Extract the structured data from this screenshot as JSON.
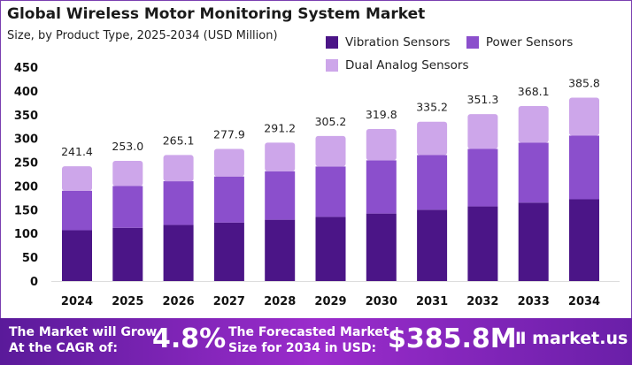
{
  "chart_data": {
    "type": "bar",
    "stacked": true,
    "title": "Global Wireless Motor Monitoring System Market",
    "subtitle": "Size, by Product Type, 2025-2034 (USD Million)",
    "categories": [
      "2024",
      "2025",
      "2026",
      "2027",
      "2028",
      "2029",
      "2030",
      "2031",
      "2032",
      "2033",
      "2034"
    ],
    "series": [
      {
        "name": "Vibration Sensors",
        "color": "#4b1587",
        "values": [
          107,
          112,
          118,
          123,
          129,
          135,
          142,
          150,
          157,
          165,
          172
        ]
      },
      {
        "name": "Power Sensors",
        "color": "#8b4fcc",
        "values": [
          83,
          88,
          92,
          97,
          102,
          106,
          112,
          115,
          121,
          126,
          134
        ]
      },
      {
        "name": "Dual Analog Sensors",
        "color": "#cda6ea",
        "values": [
          51.4,
          53,
          55.1,
          57.9,
          60.2,
          64.2,
          65.8,
          70.2,
          73.3,
          77.1,
          79.8
        ]
      }
    ],
    "totals": [
      "241.4",
      "253.0",
      "265.1",
      "277.9",
      "291.2",
      "305.2",
      "319.8",
      "335.2",
      "351.3",
      "368.1",
      "385.8"
    ],
    "yticks": [
      0,
      50,
      100,
      150,
      200,
      250,
      300,
      350,
      400,
      450
    ],
    "ylim": [
      0,
      450
    ],
    "grid": false,
    "legend_position": "top-right"
  },
  "footer": {
    "cagr_text_1": "The Market will Grow",
    "cagr_text_2": "At the CAGR of:",
    "cagr_value": "4.8%",
    "forecast_text_1": "The Forecasted Market",
    "forecast_text_2": "Size for 2034 in USD:",
    "forecast_value": "$385.8M",
    "brand": "market.us"
  }
}
